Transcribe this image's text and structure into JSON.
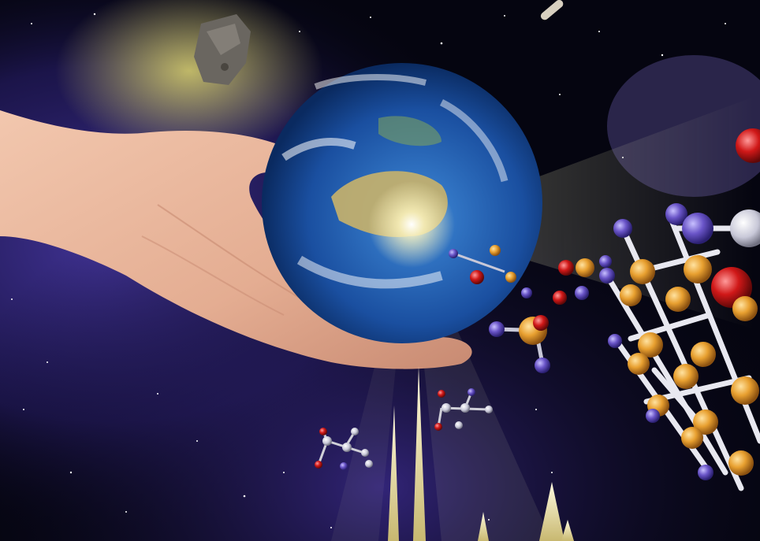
{
  "scene": {
    "subject": "space-collage",
    "elements": [
      "hand",
      "earth",
      "asteroid",
      "molecules",
      "crystal-lattice",
      "spectrum-peaks",
      "light-rays"
    ]
  },
  "colors": {
    "space": "#050510",
    "nebula": "#3a2a8a",
    "ocean": "#1f5fb0",
    "land": "#c9b26a",
    "glow": "#f5f0b0",
    "skin": "#e8b59a",
    "lattice_gold": "#e8a030",
    "lattice_purple": "#6a55c8",
    "oxygen_red": "#d01818",
    "peak_yellow": "#f0e8a0"
  }
}
